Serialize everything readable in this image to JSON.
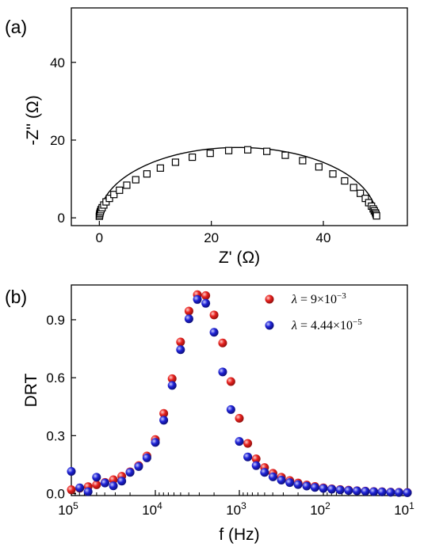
{
  "chart_data": [
    {
      "panel_label": "(a)",
      "type": "scatter",
      "xlabel": "Z' (Ω)",
      "ylabel": "-Z'' (Ω)",
      "xlim": [
        -5,
        55
      ],
      "ylim": [
        -2,
        54
      ],
      "xticks": [
        0,
        20,
        40
      ],
      "yticks": [
        0,
        20,
        40
      ],
      "marker": "open-square",
      "fit_line": true,
      "semicircle": {
        "r_series": 0.0,
        "r_ct": 49.5,
        "depression_max": 18.1
      },
      "points": [
        [
          0.0,
          0.4
        ],
        [
          0.05,
          0.8
        ],
        [
          0.1,
          1.2
        ],
        [
          0.18,
          1.6
        ],
        [
          0.3,
          2.1
        ],
        [
          0.5,
          2.6
        ],
        [
          0.8,
          3.3
        ],
        [
          1.2,
          4.1
        ],
        [
          1.8,
          5.0
        ],
        [
          2.6,
          6.0
        ],
        [
          3.6,
          7.1
        ],
        [
          4.9,
          8.4
        ],
        [
          6.5,
          9.8
        ],
        [
          8.5,
          11.3
        ],
        [
          10.9,
          12.8
        ],
        [
          13.6,
          14.3
        ],
        [
          16.6,
          15.6
        ],
        [
          19.8,
          16.6
        ],
        [
          23.1,
          17.3
        ],
        [
          26.5,
          17.5
        ],
        [
          29.9,
          17.1
        ],
        [
          33.2,
          16.1
        ],
        [
          36.3,
          14.7
        ],
        [
          39.2,
          13.1
        ],
        [
          41.7,
          11.3
        ],
        [
          43.8,
          9.5
        ],
        [
          45.4,
          7.8
        ],
        [
          46.6,
          6.3
        ],
        [
          47.5,
          5.0
        ],
        [
          48.1,
          3.9
        ],
        [
          48.6,
          3.0
        ],
        [
          48.9,
          2.3
        ],
        [
          49.1,
          1.8
        ],
        [
          49.3,
          1.3
        ],
        [
          49.4,
          0.9
        ],
        [
          49.5,
          0.5
        ]
      ]
    },
    {
      "panel_label": "(b)",
      "type": "scatter",
      "xlabel": "f (Hz)",
      "ylabel": "DRT",
      "x_scale": "log",
      "x_reversed": true,
      "xlim": [
        100000,
        10
      ],
      "ylim": [
        -0.01,
        1.08
      ],
      "xticks": [
        {
          "base": "10",
          "exp": "5",
          "value": 100000
        },
        {
          "base": "10",
          "exp": "4",
          "value": 10000
        },
        {
          "base": "10",
          "exp": "3",
          "value": 1000
        },
        {
          "base": "10",
          "exp": "2",
          "value": 100
        },
        {
          "base": "10",
          "exp": "1",
          "value": 10
        }
      ],
      "yticks": [
        "0.0",
        "0.3",
        "0.6",
        "0.9"
      ],
      "ytick_values": [
        0.0,
        0.3,
        0.6,
        0.9
      ],
      "legend_position": "top-right",
      "series": [
        {
          "name_parts": {
            "lhs": "λ",
            "eq": " = 9×10",
            "exp": "−3"
          },
          "color": "#e8221f",
          "x": [
            100000,
            79400,
            63100,
            50100,
            39800,
            31600,
            25100,
            20000,
            15800,
            12600,
            10000,
            7940,
            6310,
            5010,
            3980,
            3160,
            2510,
            2000,
            1580,
            1260,
            1000,
            794,
            631,
            501,
            398,
            316,
            251,
            200,
            158,
            126,
            100,
            79.4,
            63.1,
            50.1,
            39.8,
            31.6,
            25.1,
            20,
            15.8,
            12.6,
            10
          ],
          "y": [
            0.02,
            0.028,
            0.036,
            0.046,
            0.058,
            0.072,
            0.09,
            0.113,
            0.145,
            0.195,
            0.28,
            0.415,
            0.595,
            0.785,
            0.945,
            1.03,
            1.025,
            0.925,
            0.78,
            0.58,
            0.39,
            0.26,
            0.18,
            0.135,
            0.105,
            0.085,
            0.068,
            0.055,
            0.045,
            0.037,
            0.03,
            0.025,
            0.021,
            0.018,
            0.015,
            0.013,
            0.011,
            0.01,
            0.008,
            0.007,
            0.006
          ]
        },
        {
          "name_parts": {
            "lhs": "λ",
            "eq": " = 4.44×10",
            "exp": "−5"
          },
          "color": "#1e22d6",
          "x": [
            100000,
            79400,
            63100,
            50100,
            39800,
            31600,
            25100,
            20000,
            15800,
            12600,
            10000,
            7940,
            6310,
            5010,
            3980,
            3160,
            2510,
            2000,
            1580,
            1260,
            1000,
            794,
            631,
            501,
            398,
            316,
            251,
            200,
            158,
            126,
            100,
            79.4,
            63.1,
            50.1,
            39.8,
            31.6,
            25.1,
            20,
            15.8,
            12.6,
            10
          ],
          "y": [
            0.115,
            0.03,
            0.01,
            0.085,
            0.055,
            0.04,
            0.065,
            0.11,
            0.14,
            0.185,
            0.265,
            0.38,
            0.56,
            0.745,
            0.905,
            1.005,
            0.985,
            0.835,
            0.63,
            0.435,
            0.27,
            0.19,
            0.145,
            0.11,
            0.087,
            0.07,
            0.057,
            0.047,
            0.039,
            0.032,
            0.027,
            0.023,
            0.019,
            0.016,
            0.014,
            0.012,
            0.01,
            0.009,
            0.007,
            0.006,
            0.005
          ]
        }
      ]
    }
  ]
}
